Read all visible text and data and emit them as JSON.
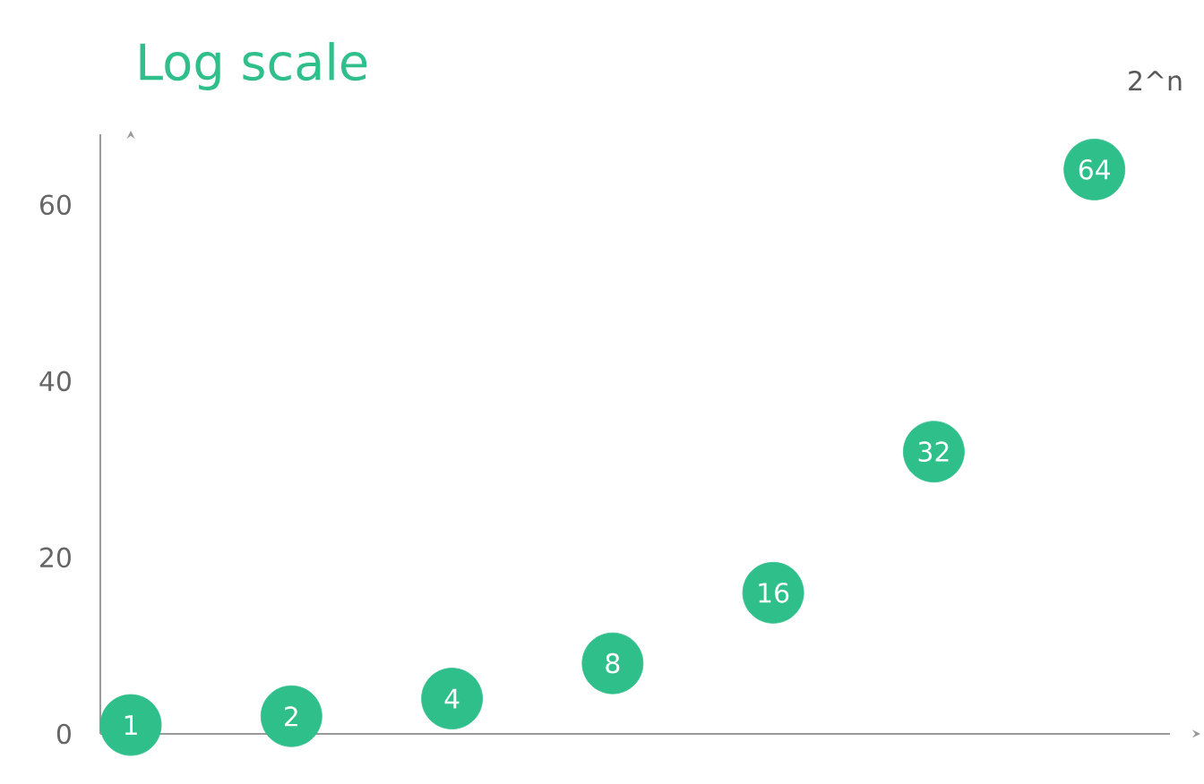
{
  "chart_data": {
    "type": "scatter",
    "title": "Log scale",
    "annotations": [
      "2^n"
    ],
    "categories": [
      null,
      null,
      null,
      null,
      null,
      null,
      null
    ],
    "values": [
      1,
      2,
      4,
      8,
      16,
      32,
      64
    ],
    "color": "#2fbf8b",
    "ylim": [
      0,
      68
    ],
    "yticks": [
      0,
      20,
      40,
      60
    ],
    "tick_labels": "y",
    "data_labels": true,
    "marker": "circle",
    "grid": false
  }
}
